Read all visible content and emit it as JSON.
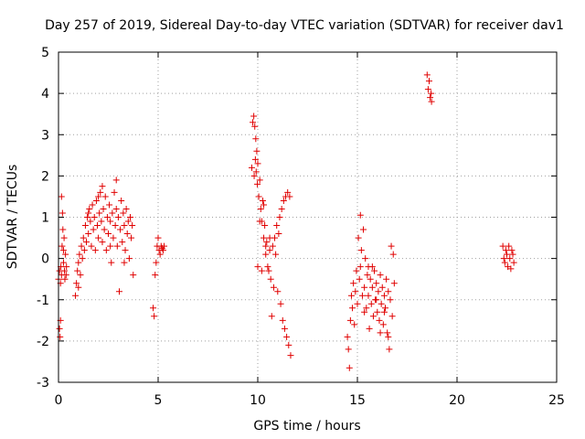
{
  "chart_data": {
    "type": "scatter",
    "title": "Day 257 of 2019, Sidereal Day-to-day VTEC variation (SDTVAR) for receiver dav1",
    "xlabel": "GPS time / hours",
    "ylabel": "SDTVAR / TECUs",
    "xlim": [
      0,
      25
    ],
    "ylim": [
      -3,
      5
    ],
    "xticks": [
      0,
      5,
      10,
      15,
      20,
      25
    ],
    "yticks": [
      -3,
      -2,
      -1,
      0,
      1,
      2,
      3,
      4,
      5
    ],
    "xtick_labels": [
      "0",
      "5",
      "10",
      "15",
      "20",
      "25"
    ],
    "ytick_labels": [
      "-3",
      "-2",
      "-1",
      "0",
      "1",
      "2",
      "3",
      "4",
      "5"
    ],
    "grid": true,
    "marker": "+",
    "color": "#e00000",
    "series": [
      {
        "name": "dav1",
        "points": [
          [
            0.0,
            -0.5
          ],
          [
            0.05,
            -0.3
          ],
          [
            0.05,
            -1.7
          ],
          [
            0.08,
            -1.9
          ],
          [
            0.1,
            -0.6
          ],
          [
            0.1,
            -1.5
          ],
          [
            0.12,
            -0.2
          ],
          [
            0.15,
            -0.4
          ],
          [
            0.15,
            1.5
          ],
          [
            0.18,
            0.3
          ],
          [
            0.2,
            1.1
          ],
          [
            0.22,
            0.7
          ],
          [
            0.25,
            0.2
          ],
          [
            0.25,
            -0.1
          ],
          [
            0.28,
            0.5
          ],
          [
            0.3,
            -0.3
          ],
          [
            0.32,
            -0.5
          ],
          [
            0.35,
            0.1
          ],
          [
            0.38,
            -0.4
          ],
          [
            0.4,
            -0.2
          ],
          [
            0.85,
            -0.9
          ],
          [
            0.9,
            -0.6
          ],
          [
            0.95,
            -0.3
          ],
          [
            1.0,
            -0.1
          ],
          [
            1.0,
            -0.7
          ],
          [
            1.05,
            0.1
          ],
          [
            1.1,
            -0.4
          ],
          [
            1.15,
            0.3
          ],
          [
            1.2,
            0.0
          ],
          [
            1.25,
            0.5
          ],
          [
            1.3,
            0.2
          ],
          [
            1.35,
            0.8
          ],
          [
            1.4,
            0.4
          ],
          [
            1.45,
            1.0
          ],
          [
            1.5,
            0.6
          ],
          [
            1.55,
            1.2
          ],
          [
            1.6,
            0.9
          ],
          [
            1.65,
            0.3
          ],
          [
            1.7,
            1.3
          ],
          [
            1.75,
            0.7
          ],
          [
            1.8,
            1.0
          ],
          [
            1.85,
            0.2
          ],
          [
            1.9,
            1.4
          ],
          [
            1.95,
            0.8
          ],
          [
            2.0,
            0.5
          ],
          [
            2.05,
            1.1
          ],
          [
            2.1,
            1.6
          ],
          [
            2.15,
            0.9
          ],
          [
            2.2,
            0.4
          ],
          [
            2.25,
            1.2
          ],
          [
            2.3,
            0.7
          ],
          [
            2.35,
            1.5
          ],
          [
            2.4,
            0.2
          ],
          [
            2.45,
            1.0
          ],
          [
            2.5,
            0.6
          ],
          [
            2.55,
            1.3
          ],
          [
            2.6,
            0.9
          ],
          [
            2.65,
            -0.1
          ],
          [
            2.7,
            1.1
          ],
          [
            2.75,
            0.5
          ],
          [
            2.8,
            1.6
          ],
          [
            2.85,
            0.8
          ],
          [
            2.9,
            1.2
          ],
          [
            2.95,
            0.3
          ],
          [
            3.0,
            1.0
          ],
          [
            3.05,
            -0.8
          ],
          [
            3.1,
            0.7
          ],
          [
            3.15,
            1.4
          ],
          [
            3.2,
            0.4
          ],
          [
            3.25,
            1.1
          ],
          [
            3.3,
            0.8
          ],
          [
            3.35,
            0.2
          ],
          [
            3.4,
            1.2
          ],
          [
            3.45,
            0.6
          ],
          [
            3.5,
            0.9
          ],
          [
            3.55,
            0.0
          ],
          [
            3.6,
            1.0
          ],
          [
            3.65,
            0.5
          ],
          [
            3.7,
            0.8
          ],
          [
            3.75,
            -0.4
          ],
          [
            2.2,
            1.75
          ],
          [
            2.9,
            1.9
          ],
          [
            1.5,
            1.1
          ],
          [
            2.0,
            1.5
          ],
          [
            3.3,
            -0.1
          ],
          [
            2.6,
            0.3
          ],
          [
            4.75,
            -1.2
          ],
          [
            4.8,
            -1.4
          ],
          [
            4.85,
            -0.4
          ],
          [
            4.9,
            -0.1
          ],
          [
            4.95,
            0.3
          ],
          [
            5.0,
            0.5
          ],
          [
            5.05,
            0.2
          ],
          [
            5.1,
            0.1
          ],
          [
            5.15,
            0.3
          ],
          [
            5.2,
            0.25
          ],
          [
            5.25,
            0.2
          ],
          [
            5.3,
            0.3
          ],
          [
            9.7,
            2.2
          ],
          [
            9.75,
            3.3
          ],
          [
            9.8,
            3.45
          ],
          [
            9.82,
            2.0
          ],
          [
            9.85,
            3.2
          ],
          [
            9.88,
            2.4
          ],
          [
            9.9,
            2.9
          ],
          [
            9.92,
            2.1
          ],
          [
            9.95,
            2.6
          ],
          [
            9.98,
            1.8
          ],
          [
            10.0,
            2.3
          ],
          [
            10.05,
            1.5
          ],
          [
            10.1,
            1.9
          ],
          [
            10.15,
            1.2
          ],
          [
            10.2,
            0.9
          ],
          [
            10.25,
            1.4
          ],
          [
            10.3,
            0.5
          ],
          [
            10.35,
            0.8
          ],
          [
            10.4,
            0.1
          ],
          [
            10.45,
            0.4
          ],
          [
            10.5,
            -0.2
          ],
          [
            10.55,
            -0.3
          ],
          [
            10.6,
            0.2
          ],
          [
            10.65,
            -0.5
          ],
          [
            10.7,
            -1.4
          ],
          [
            10.75,
            0.3
          ],
          [
            10.8,
            -0.7
          ],
          [
            10.85,
            0.5
          ],
          [
            10.9,
            0.1
          ],
          [
            10.95,
            0.8
          ],
          [
            11.0,
            -0.8
          ],
          [
            11.05,
            0.6
          ],
          [
            11.1,
            1.0
          ],
          [
            11.15,
            -1.1
          ],
          [
            11.2,
            1.2
          ],
          [
            11.25,
            -1.5
          ],
          [
            11.3,
            1.4
          ],
          [
            11.35,
            -1.7
          ],
          [
            11.4,
            1.5
          ],
          [
            11.45,
            -1.9
          ],
          [
            11.5,
            1.6
          ],
          [
            11.55,
            -2.1
          ],
          [
            11.6,
            1.5
          ],
          [
            11.65,
            -2.35
          ],
          [
            10.0,
            -0.2
          ],
          [
            10.2,
            -0.3
          ],
          [
            10.4,
            0.3
          ],
          [
            10.6,
            0.5
          ],
          [
            10.3,
            1.3
          ],
          [
            10.1,
            0.9
          ],
          [
            14.5,
            -1.9
          ],
          [
            14.55,
            -2.2
          ],
          [
            14.6,
            -2.65
          ],
          [
            14.65,
            -1.5
          ],
          [
            14.7,
            -0.9
          ],
          [
            14.75,
            -1.2
          ],
          [
            14.8,
            -0.6
          ],
          [
            14.85,
            -1.6
          ],
          [
            14.9,
            -0.8
          ],
          [
            14.95,
            -0.3
          ],
          [
            15.0,
            -1.1
          ],
          [
            15.05,
            0.5
          ],
          [
            15.1,
            -0.5
          ],
          [
            15.15,
            1.05
          ],
          [
            15.2,
            0.2
          ],
          [
            15.25,
            -0.9
          ],
          [
            15.3,
            0.7
          ],
          [
            15.35,
            -0.7
          ],
          [
            15.4,
            0.0
          ],
          [
            15.45,
            -1.2
          ],
          [
            15.5,
            -0.4
          ],
          [
            15.55,
            -0.9
          ],
          [
            15.6,
            -1.7
          ],
          [
            15.65,
            -0.5
          ],
          [
            15.7,
            -1.1
          ],
          [
            15.75,
            -0.7
          ],
          [
            15.8,
            -1.4
          ],
          [
            15.85,
            -0.3
          ],
          [
            15.9,
            -1.0
          ],
          [
            15.95,
            -0.6
          ],
          [
            16.0,
            -1.3
          ],
          [
            16.05,
            -0.8
          ],
          [
            16.1,
            -1.5
          ],
          [
            16.15,
            -0.4
          ],
          [
            16.2,
            -1.1
          ],
          [
            16.25,
            -0.7
          ],
          [
            16.3,
            -1.6
          ],
          [
            16.35,
            -0.9
          ],
          [
            16.4,
            -1.2
          ],
          [
            16.45,
            -0.5
          ],
          [
            16.5,
            -1.8
          ],
          [
            16.55,
            -0.8
          ],
          [
            16.6,
            -2.2
          ],
          [
            16.65,
            -1.0
          ],
          [
            16.7,
            0.3
          ],
          [
            16.75,
            -1.4
          ],
          [
            16.8,
            0.1
          ],
          [
            16.85,
            -0.6
          ],
          [
            16.55,
            -1.9
          ],
          [
            16.35,
            -1.3
          ],
          [
            15.95,
            -1.0
          ],
          [
            15.75,
            -0.2
          ],
          [
            16.15,
            -1.8
          ],
          [
            15.15,
            -0.2
          ],
          [
            15.35,
            -1.3
          ],
          [
            15.55,
            -0.2
          ],
          [
            18.5,
            4.45
          ],
          [
            18.55,
            4.1
          ],
          [
            18.6,
            4.3
          ],
          [
            18.65,
            3.9
          ],
          [
            18.7,
            4.0
          ],
          [
            18.72,
            3.8
          ],
          [
            22.3,
            0.3
          ],
          [
            22.35,
            0.0
          ],
          [
            22.4,
            -0.1
          ],
          [
            22.45,
            0.2
          ],
          [
            22.5,
            0.1
          ],
          [
            22.55,
            -0.2
          ],
          [
            22.6,
            0.3
          ],
          [
            22.65,
            0.0
          ],
          [
            22.7,
            -0.25
          ],
          [
            22.75,
            0.2
          ],
          [
            22.8,
            0.1
          ],
          [
            22.85,
            -0.1
          ]
        ]
      }
    ]
  }
}
